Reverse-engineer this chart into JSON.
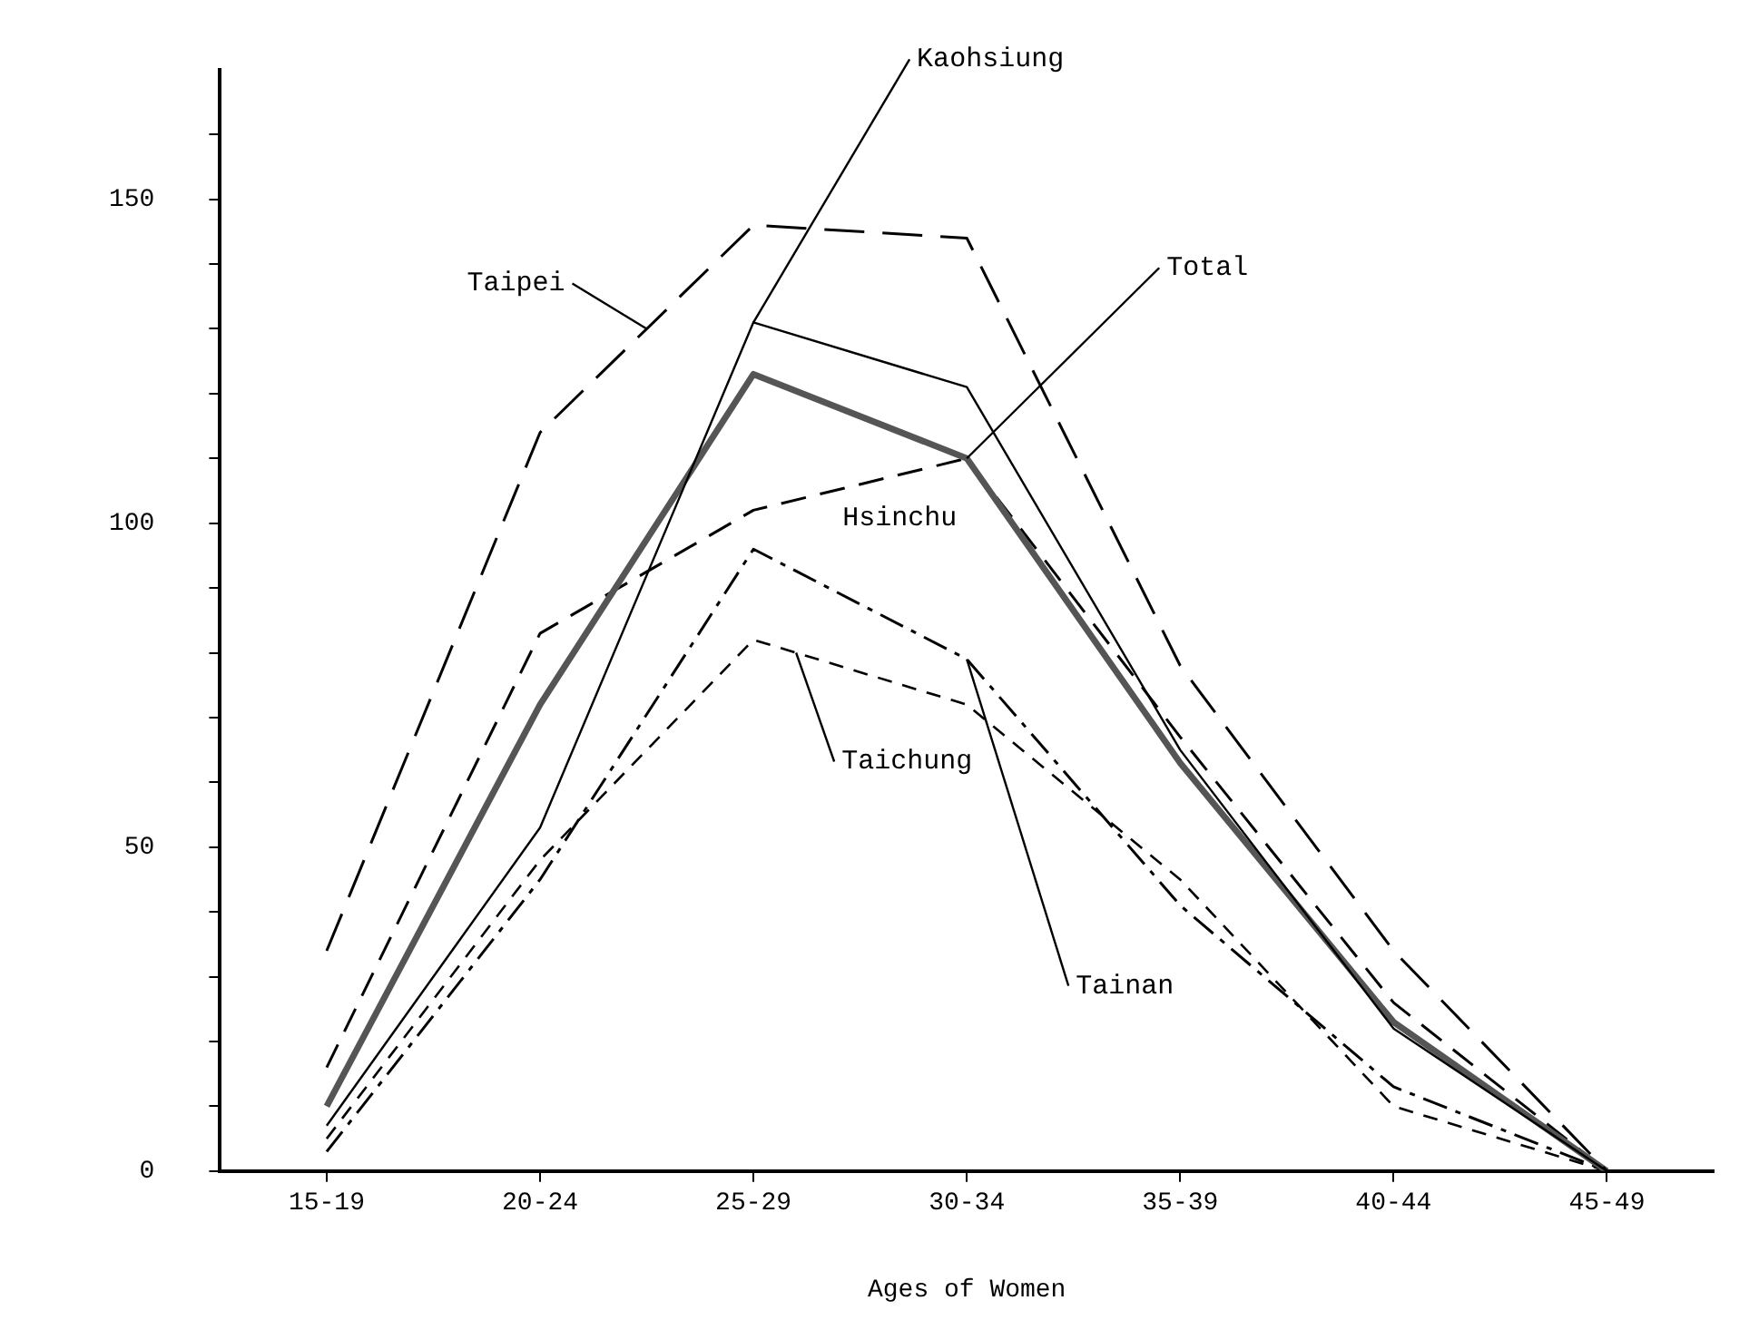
{
  "chart_data": {
    "type": "line",
    "xlabel": "Ages of Women",
    "categories": [
      "15-19",
      "20-24",
      "25-29",
      "30-34",
      "35-39",
      "40-44",
      "45-49"
    ],
    "ylim": [
      0,
      170
    ],
    "yticks": [
      0,
      {
        "value": 10,
        "label": null
      },
      {
        "value": 20,
        "label": null
      },
      {
        "value": 30,
        "label": null
      },
      {
        "value": 40,
        "label": null
      },
      50,
      {
        "value": 60,
        "label": null
      },
      {
        "value": 70,
        "label": null
      },
      {
        "value": 80,
        "label": null
      },
      {
        "value": 90,
        "label": null
      },
      100,
      {
        "value": 110,
        "label": null
      },
      {
        "value": 120,
        "label": null
      },
      {
        "value": 130,
        "label": null
      },
      {
        "value": 140,
        "label": null
      },
      150,
      {
        "value": 160,
        "label": null
      }
    ],
    "grid": false,
    "legend": false,
    "marker": "none",
    "series": [
      {
        "name": "Taipei",
        "color": "#000000",
        "line_style": "dashed",
        "values": [
          34,
          114,
          146,
          144,
          78,
          34,
          0
        ]
      },
      {
        "name": "Kaohsiung",
        "color": "#000000",
        "line_style": "solid",
        "values": [
          7,
          53,
          131,
          121,
          65,
          22,
          0
        ]
      },
      {
        "name": "Total",
        "color": "#555555",
        "line_style": "solid",
        "values": [
          10,
          72,
          123,
          110,
          63,
          23,
          0
        ]
      },
      {
        "name": "Hsinchu",
        "color": "#000000",
        "line_style": "dashed",
        "values": [
          16,
          83,
          102,
          110,
          67,
          26,
          0
        ]
      },
      {
        "name": "Taichung",
        "color": "#000000",
        "line_style": "dashed",
        "values": [
          5,
          48,
          82,
          72,
          45,
          10,
          0
        ]
      },
      {
        "name": "Tainan",
        "color": "#000000",
        "line_style": "dashed",
        "values": [
          3,
          45,
          96,
          79,
          41,
          13,
          0
        ]
      }
    ]
  }
}
